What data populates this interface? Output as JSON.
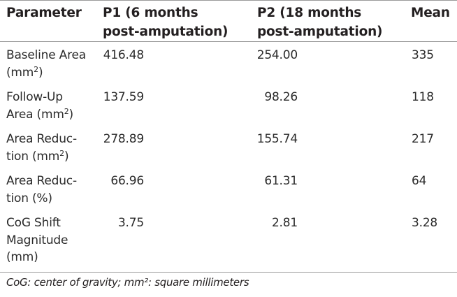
{
  "table": {
    "headers": [
      "Parameter",
      "P1 (6 months\npost-amputation)",
      "P2 (18 months\npost-amputation)",
      "Mean"
    ],
    "rows": [
      {
        "parameter_line1": "Baseline Area",
        "parameter_line2": "(mm",
        "parameter_sup": "2",
        "parameter_end": ")",
        "p1": "416.48",
        "p2": "254.00",
        "mean": "335"
      },
      {
        "parameter_line1": "Follow-Up",
        "parameter_line2": "Area (mm",
        "parameter_sup": "2",
        "parameter_end": ")",
        "p1": "137.59",
        "p2": "98.26",
        "mean": "118"
      },
      {
        "parameter_line1": "Area Reduc-",
        "parameter_line2": "tion (mm",
        "parameter_sup": "2",
        "parameter_end": ")",
        "p1": "278.89",
        "p2": "155.74",
        "mean": "217"
      },
      {
        "parameter_line1": "Area Reduc-",
        "parameter_line2": "tion (%)",
        "p1": "66.96",
        "p2": "61.31",
        "mean": "64"
      },
      {
        "parameter_line1": "CoG Shift",
        "parameter_line2": "Magnitude",
        "parameter_line3": "(mm)",
        "p1": "3.75",
        "p2": "2.81",
        "mean": "3.28"
      }
    ]
  },
  "footnote": "CoG: center of gravity; mm²: square millimeters"
}
